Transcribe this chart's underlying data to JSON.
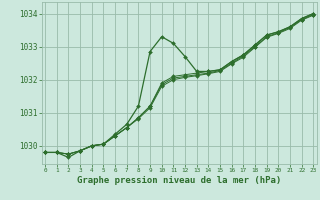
{
  "background_color": "#cce8dd",
  "grid_color": "#99bbaa",
  "line_color": "#2d6e2d",
  "title": "Graphe pression niveau de la mer (hPa)",
  "title_fontsize": 6.5,
  "ylim": [
    1029.45,
    1034.35
  ],
  "xlim": [
    -0.3,
    23.3
  ],
  "yticks": [
    1030,
    1031,
    1032,
    1033,
    1034
  ],
  "xticks": [
    0,
    1,
    2,
    3,
    4,
    5,
    6,
    7,
    8,
    9,
    10,
    11,
    12,
    13,
    14,
    15,
    16,
    17,
    18,
    19,
    20,
    21,
    22,
    23
  ],
  "series_bundle": [
    [
      1029.8,
      1029.8,
      1029.75,
      1029.85,
      1030.0,
      1030.05,
      1030.3,
      1030.55,
      1030.85,
      1031.2,
      1031.9,
      1032.1,
      1032.15,
      1032.2,
      1032.25,
      1032.3,
      1032.55,
      1032.75,
      1033.05,
      1033.35,
      1033.45,
      1033.6,
      1033.85,
      1034.0
    ],
    [
      1029.8,
      1029.8,
      1029.75,
      1029.85,
      1030.0,
      1030.05,
      1030.3,
      1030.55,
      1030.85,
      1031.2,
      1031.85,
      1032.05,
      1032.1,
      1032.15,
      1032.2,
      1032.28,
      1032.5,
      1032.72,
      1033.0,
      1033.3,
      1033.42,
      1033.58,
      1033.82,
      1033.97
    ],
    [
      1029.8,
      1029.8,
      1029.75,
      1029.85,
      1030.0,
      1030.05,
      1030.3,
      1030.55,
      1030.82,
      1031.15,
      1031.8,
      1032.0,
      1032.07,
      1032.12,
      1032.18,
      1032.25,
      1032.48,
      1032.68,
      1032.98,
      1033.28,
      1033.4,
      1033.55,
      1033.8,
      1033.95
    ]
  ],
  "series_spike": [
    1029.8,
    1029.8,
    1029.65,
    1029.85,
    1030.0,
    1030.05,
    1030.35,
    1030.65,
    1031.2,
    1032.85,
    1033.3,
    1033.1,
    1032.7,
    1032.25,
    1032.25,
    1032.3,
    1032.55,
    1032.75,
    1033.05,
    1033.35,
    1033.45,
    1033.6,
    1033.85,
    1034.0
  ]
}
